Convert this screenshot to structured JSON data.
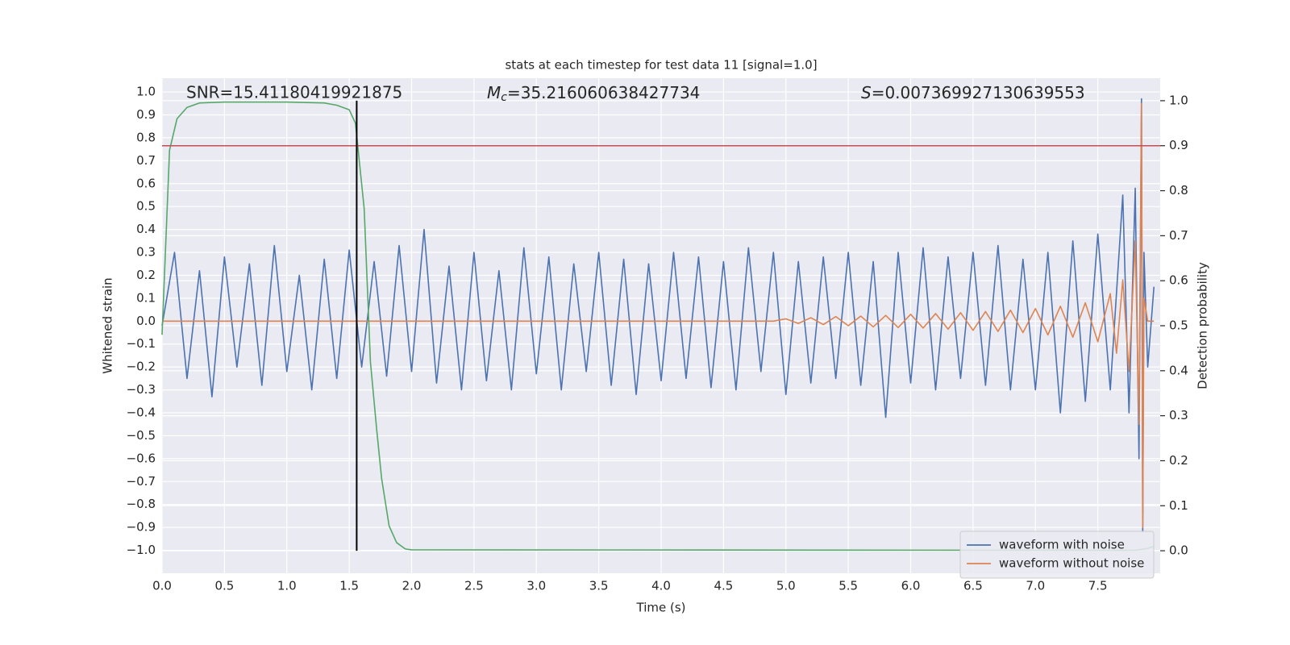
{
  "chart_data": {
    "type": "line",
    "title": "stats at each timestep for test data 11 [signal=1.0]",
    "x_label": "Time (s)",
    "y_label": "Whitened strain",
    "y2_label": "Detection probability",
    "annotations": [
      {
        "text": "SNR=15.41180419921875"
      },
      {
        "symbol": "M",
        "subscript": "c",
        "text": "=35.216060638427734"
      },
      {
        "symbol": "S",
        "text": "=0.007369927130639553"
      }
    ],
    "xlim": [
      0,
      8
    ],
    "ylim": [
      -1.1,
      1.06
    ],
    "y2lim": [
      -0.05,
      1.05
    ],
    "xticks": [
      {
        "value": 0,
        "label": "0.0"
      },
      {
        "value": 0.5,
        "label": "0.5"
      },
      {
        "value": 1,
        "label": "1.0"
      },
      {
        "value": 1.5,
        "label": "1.5"
      },
      {
        "value": 2,
        "label": "2.0"
      },
      {
        "value": 2.5,
        "label": "2.5"
      },
      {
        "value": 3,
        "label": "3.0"
      },
      {
        "value": 3.5,
        "label": "3.5"
      },
      {
        "value": 4,
        "label": "4.0"
      },
      {
        "value": 4.5,
        "label": "4.5"
      },
      {
        "value": 5,
        "label": "5.0"
      },
      {
        "value": 5.5,
        "label": "5.5"
      },
      {
        "value": 6,
        "label": "6.0"
      },
      {
        "value": 6.5,
        "label": "6.5"
      },
      {
        "value": 7,
        "label": "7.0"
      },
      {
        "value": 7.5,
        "label": "7.5"
      }
    ],
    "yticks": [
      {
        "value": -1,
        "label": "−1.0"
      },
      {
        "value": -0.9,
        "label": "−0.9"
      },
      {
        "value": -0.8,
        "label": "−0.8"
      },
      {
        "value": -0.7,
        "label": "−0.7"
      },
      {
        "value": -0.6,
        "label": "−0.6"
      },
      {
        "value": -0.5,
        "label": "−0.5"
      },
      {
        "value": -0.4,
        "label": "−0.4"
      },
      {
        "value": -0.3,
        "label": "−0.3"
      },
      {
        "value": -0.2,
        "label": "−0.2"
      },
      {
        "value": -0.1,
        "label": "−0.1"
      },
      {
        "value": 0,
        "label": "0.0"
      },
      {
        "value": 0.1,
        "label": "0.1"
      },
      {
        "value": 0.2,
        "label": "0.2"
      },
      {
        "value": 0.3,
        "label": "0.3"
      },
      {
        "value": 0.4,
        "label": "0.4"
      },
      {
        "value": 0.5,
        "label": "0.5"
      },
      {
        "value": 0.6,
        "label": "0.6"
      },
      {
        "value": 0.7,
        "label": "0.7"
      },
      {
        "value": 0.8,
        "label": "0.8"
      },
      {
        "value": 0.9,
        "label": "0.9"
      },
      {
        "value": 1,
        "label": "1.0"
      }
    ],
    "y2ticks": [
      {
        "value": 0,
        "label": "0.0"
      },
      {
        "value": 0.1,
        "label": "0.1"
      },
      {
        "value": 0.2,
        "label": "0.2"
      },
      {
        "value": 0.3,
        "label": "0.3"
      },
      {
        "value": 0.4,
        "label": "0.4"
      },
      {
        "value": 0.5,
        "label": "0.5"
      },
      {
        "value": 0.6,
        "label": "0.6"
      },
      {
        "value": 0.7,
        "label": "0.7"
      },
      {
        "value": 0.8,
        "label": "0.8"
      },
      {
        "value": 0.9,
        "label": "0.9"
      },
      {
        "value": 1,
        "label": "1.0"
      }
    ],
    "grid": true,
    "legend": "lower right",
    "series": [
      {
        "name": "waveform with noise",
        "color": "#4c72b0",
        "x": [
          0,
          0.1,
          0.2,
          0.3,
          0.4,
          0.5,
          0.6,
          0.7,
          0.8,
          0.9,
          1,
          1.1,
          1.2,
          1.3,
          1.4,
          1.5,
          1.6,
          1.7,
          1.8,
          1.9,
          2,
          2.1,
          2.2,
          2.3,
          2.4,
          2.5,
          2.6,
          2.7,
          2.8,
          2.9,
          3,
          3.1,
          3.2,
          3.3,
          3.4,
          3.5,
          3.6,
          3.7,
          3.8,
          3.9,
          4,
          4.1,
          4.2,
          4.3,
          4.4,
          4.5,
          4.6,
          4.7,
          4.8,
          4.9,
          5,
          5.1,
          5.2,
          5.3,
          5.4,
          5.5,
          5.6,
          5.7,
          5.8,
          5.9,
          6,
          6.1,
          6.2,
          6.3,
          6.4,
          6.5,
          6.6,
          6.7,
          6.8,
          6.9,
          7,
          7.1,
          7.2,
          7.3,
          7.4,
          7.5,
          7.6,
          7.7,
          7.75,
          7.8,
          7.83,
          7.85,
          7.86,
          7.87,
          7.9,
          7.95
        ],
        "values": [
          -0.02,
          0.3,
          -0.25,
          0.22,
          -0.33,
          0.28,
          -0.2,
          0.25,
          -0.28,
          0.33,
          -0.22,
          0.2,
          -0.3,
          0.27,
          -0.25,
          0.31,
          -0.2,
          0.26,
          -0.24,
          0.33,
          -0.22,
          0.4,
          -0.27,
          0.24,
          -0.3,
          0.3,
          -0.26,
          0.22,
          -0.3,
          0.32,
          -0.23,
          0.28,
          -0.3,
          0.25,
          -0.22,
          0.3,
          -0.28,
          0.27,
          -0.32,
          0.25,
          -0.26,
          0.3,
          -0.25,
          0.28,
          -0.29,
          0.26,
          -0.3,
          0.32,
          -0.22,
          0.3,
          -0.32,
          0.26,
          -0.27,
          0.28,
          -0.25,
          0.3,
          -0.28,
          0.26,
          -0.42,
          0.3,
          -0.27,
          0.32,
          -0.3,
          0.28,
          -0.25,
          0.3,
          -0.28,
          0.33,
          -0.3,
          0.27,
          -0.3,
          0.3,
          -0.4,
          0.35,
          -0.35,
          0.38,
          -0.3,
          0.55,
          -0.4,
          0.58,
          -0.6,
          0.97,
          -0.92,
          0.3,
          -0.2,
          0.15
        ]
      },
      {
        "name": "waveform without noise",
        "color": "#dd8452",
        "x": [
          0,
          4.9,
          5,
          5.1,
          5.2,
          5.3,
          5.4,
          5.5,
          5.6,
          5.7,
          5.8,
          5.9,
          6,
          6.1,
          6.2,
          6.3,
          6.4,
          6.5,
          6.6,
          6.7,
          6.8,
          6.9,
          7,
          7.1,
          7.2,
          7.3,
          7.4,
          7.5,
          7.6,
          7.65,
          7.7,
          7.75,
          7.8,
          7.83,
          7.85,
          7.86,
          7.87,
          7.9,
          7.95
        ],
        "values": [
          0,
          0,
          0.01,
          -0.01,
          0.015,
          -0.015,
          0.02,
          -0.02,
          0.022,
          -0.025,
          0.025,
          -0.028,
          0.03,
          -0.03,
          0.033,
          -0.035,
          0.037,
          -0.04,
          0.042,
          -0.045,
          0.048,
          -0.05,
          0.055,
          -0.06,
          0.065,
          -0.07,
          0.08,
          -0.09,
          0.12,
          -0.14,
          0.18,
          -0.22,
          0.35,
          -0.45,
          0.95,
          -0.9,
          0.1,
          0,
          0
        ]
      },
      {
        "color": "#55a868",
        "axis": "y2",
        "x": [
          0,
          0.06,
          0.12,
          0.2,
          0.3,
          0.5,
          1,
          1.3,
          1.4,
          1.5,
          1.55,
          1.62,
          1.67,
          1.72,
          1.76,
          1.82,
          1.88,
          1.95,
          2,
          7.8,
          7.9,
          7.95
        ],
        "values": [
          0.48,
          0.89,
          0.96,
          0.985,
          0.995,
          0.997,
          0.997,
          0.995,
          0.99,
          0.98,
          0.95,
          0.76,
          0.42,
          0.27,
          0.16,
          0.055,
          0.018,
          0.004,
          0.002,
          0.001,
          0.005,
          0.01
        ]
      }
    ],
    "threshold": {
      "value": 0.9,
      "axis": "y2",
      "color": "#c44e52"
    },
    "vline": {
      "x": 1.56,
      "ymin": 0,
      "ymax": 1,
      "axis": "y2",
      "color": "#000000"
    }
  }
}
